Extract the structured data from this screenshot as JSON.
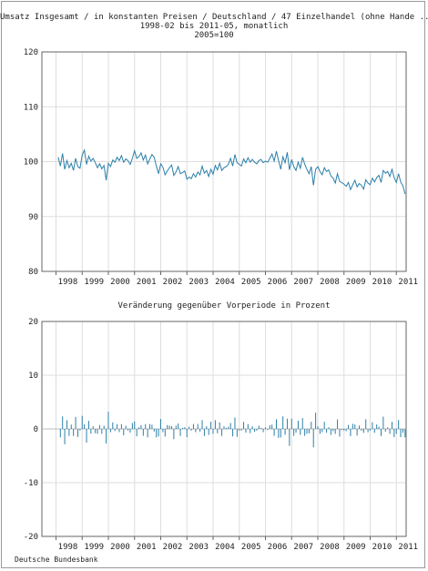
{
  "footer": "Deutsche Bundesbank",
  "colors": {
    "line": "#2b7fa8",
    "grid": "#dedede",
    "axis": "#666666"
  },
  "chart_data": [
    {
      "type": "line",
      "title": "Umsatz Insgesamt / in konstanten Preisen / Deutschland / 47 Einzelhandel (ohne Hande ...",
      "subtitle": "1998-02 bis 2011-05, monatlich",
      "subtitle2": "2005=100",
      "ylim": [
        80,
        120
      ],
      "yticks": [
        "80",
        "90",
        "100",
        "110",
        "120"
      ],
      "xticks": [
        "1998",
        "1999",
        "2000",
        "2001",
        "2002",
        "2003",
        "2004",
        "2005",
        "2006",
        "2007",
        "2008",
        "2009",
        "2010",
        "2011"
      ],
      "start": "1998-02",
      "values": [
        100.8,
        99.2,
        101.5,
        98.6,
        100.2,
        98.9,
        99.7,
        98.4,
        100.6,
        99.1,
        98.8,
        101.2,
        102.1,
        99.5,
        101.0,
        100.1,
        100.6,
        99.8,
        98.9,
        99.6,
        98.7,
        99.3,
        96.6,
        99.7,
        99.1,
        100.3,
        99.9,
        100.8,
        100.2,
        101.1,
        99.9,
        100.5,
        100.2,
        99.5,
        100.6,
        102.0,
        100.6,
        100.9,
        101.6,
        100.3,
        101.2,
        99.6,
        100.5,
        101.3,
        100.8,
        99.2,
        97.8,
        99.6,
        99.0,
        97.6,
        98.3,
        98.9,
        99.4,
        97.5,
        98.1,
        99.1,
        97.8,
        98.0,
        98.3,
        96.8,
        97.2,
        96.9,
        97.8,
        97.2,
        98.1,
        97.6,
        99.2,
        97.9,
        98.4,
        97.3,
        98.6,
        97.7,
        99.3,
        98.5,
        99.7,
        98.4,
        98.9,
        99.1,
        99.5,
        100.6,
        99.2,
        101.3,
        99.8,
        99.5,
        99.2,
        100.5,
        99.8,
        100.7,
        99.9,
        100.4,
        99.9,
        99.6,
        100.2,
        100.4,
        99.8,
        100.1,
        99.9,
        100.6,
        101.4,
        100.1,
        101.9,
        100.2,
        98.6,
        100.9,
        99.8,
        101.7,
        98.5,
        100.4,
        99.1,
        98.4,
        99.9,
        98.8,
        100.8,
        99.5,
        98.6,
        97.8,
        99.1,
        95.7,
        98.6,
        99.1,
        98.2,
        97.6,
        98.9,
        98.2,
        98.5,
        97.4,
        97.0,
        96.1,
        97.8,
        96.4,
        96.2,
        95.9,
        95.5,
        96.2,
        94.9,
        95.8,
        96.6,
        95.4,
        96.0,
        95.7,
        95.0,
        96.7,
        96.1,
        95.8,
        97.0,
        96.3,
        97.1,
        97.5,
        96.2,
        98.4,
        97.9,
        98.2,
        97.3,
        98.6,
        97.1,
        96.2,
        97.8,
        96.3,
        95.6,
        94.1
      ]
    },
    {
      "type": "bar",
      "title": "Veränderung gegenüber Vorperiode in Prozent",
      "ylim": [
        -20,
        20
      ],
      "yticks": [
        "-20",
        "-10",
        "0",
        "10",
        "20"
      ],
      "xticks": [
        "1998",
        "1999",
        "2000",
        "2001",
        "2002",
        "2003",
        "2004",
        "2005",
        "2006",
        "2007",
        "2008",
        "2009",
        "2010",
        "2011"
      ]
    }
  ]
}
